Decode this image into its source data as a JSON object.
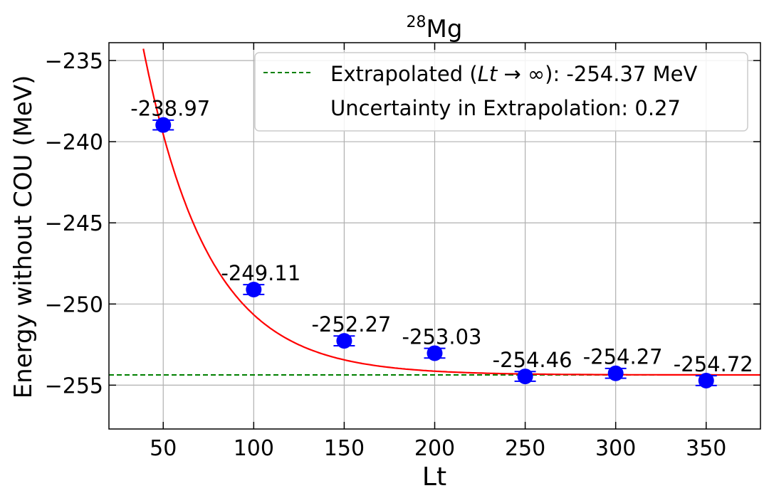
{
  "chart_data": {
    "type": "scatter",
    "title_base": "Mg",
    "title_sup": "28",
    "xlabel": "Lt",
    "ylabel": "Energy without COU (MeV)",
    "xlim": [
      20,
      380
    ],
    "ylim": [
      -257.7,
      -233.9
    ],
    "xticks": [
      50,
      100,
      150,
      200,
      250,
      300,
      350
    ],
    "yticks": [
      -235,
      -240,
      -245,
      -250,
      -255
    ],
    "ytick_labels": [
      "−235",
      "−240",
      "−245",
      "−250",
      "−255"
    ],
    "grid": true,
    "legend_position": "top-right",
    "points": [
      {
        "x": 50,
        "y": -238.97,
        "err": 0.3,
        "label": "-238.97"
      },
      {
        "x": 100,
        "y": -249.11,
        "err": 0.3,
        "label": "-249.11"
      },
      {
        "x": 150,
        "y": -252.27,
        "err": 0.3,
        "label": "-252.27"
      },
      {
        "x": 200,
        "y": -253.03,
        "err": 0.3,
        "label": "-253.03"
      },
      {
        "x": 250,
        "y": -254.46,
        "err": 0.3,
        "label": "-254.46"
      },
      {
        "x": 300,
        "y": -254.27,
        "err": 0.3,
        "label": "-254.27"
      },
      {
        "x": 350,
        "y": -254.72,
        "err": 0.3,
        "label": "-254.72"
      }
    ],
    "fit": {
      "asymptote": -254.37,
      "amplitude": 59.2,
      "rate": 0.0277
    },
    "extrapolated_value": -254.37,
    "legend": {
      "extrapolated_prefix": "Extrapolated (",
      "extrapolated_math_lt": "Lt",
      "extrapolated_math_rest": " → ∞",
      "extrapolated_suffix": "): -254.37 MeV",
      "uncertainty": "Uncertainty in Extrapolation: 0.27"
    },
    "colors": {
      "points": "#0000ff",
      "fit": "#ff0000",
      "extrapolated": "#008000",
      "grid": "#b0b0b0"
    }
  }
}
